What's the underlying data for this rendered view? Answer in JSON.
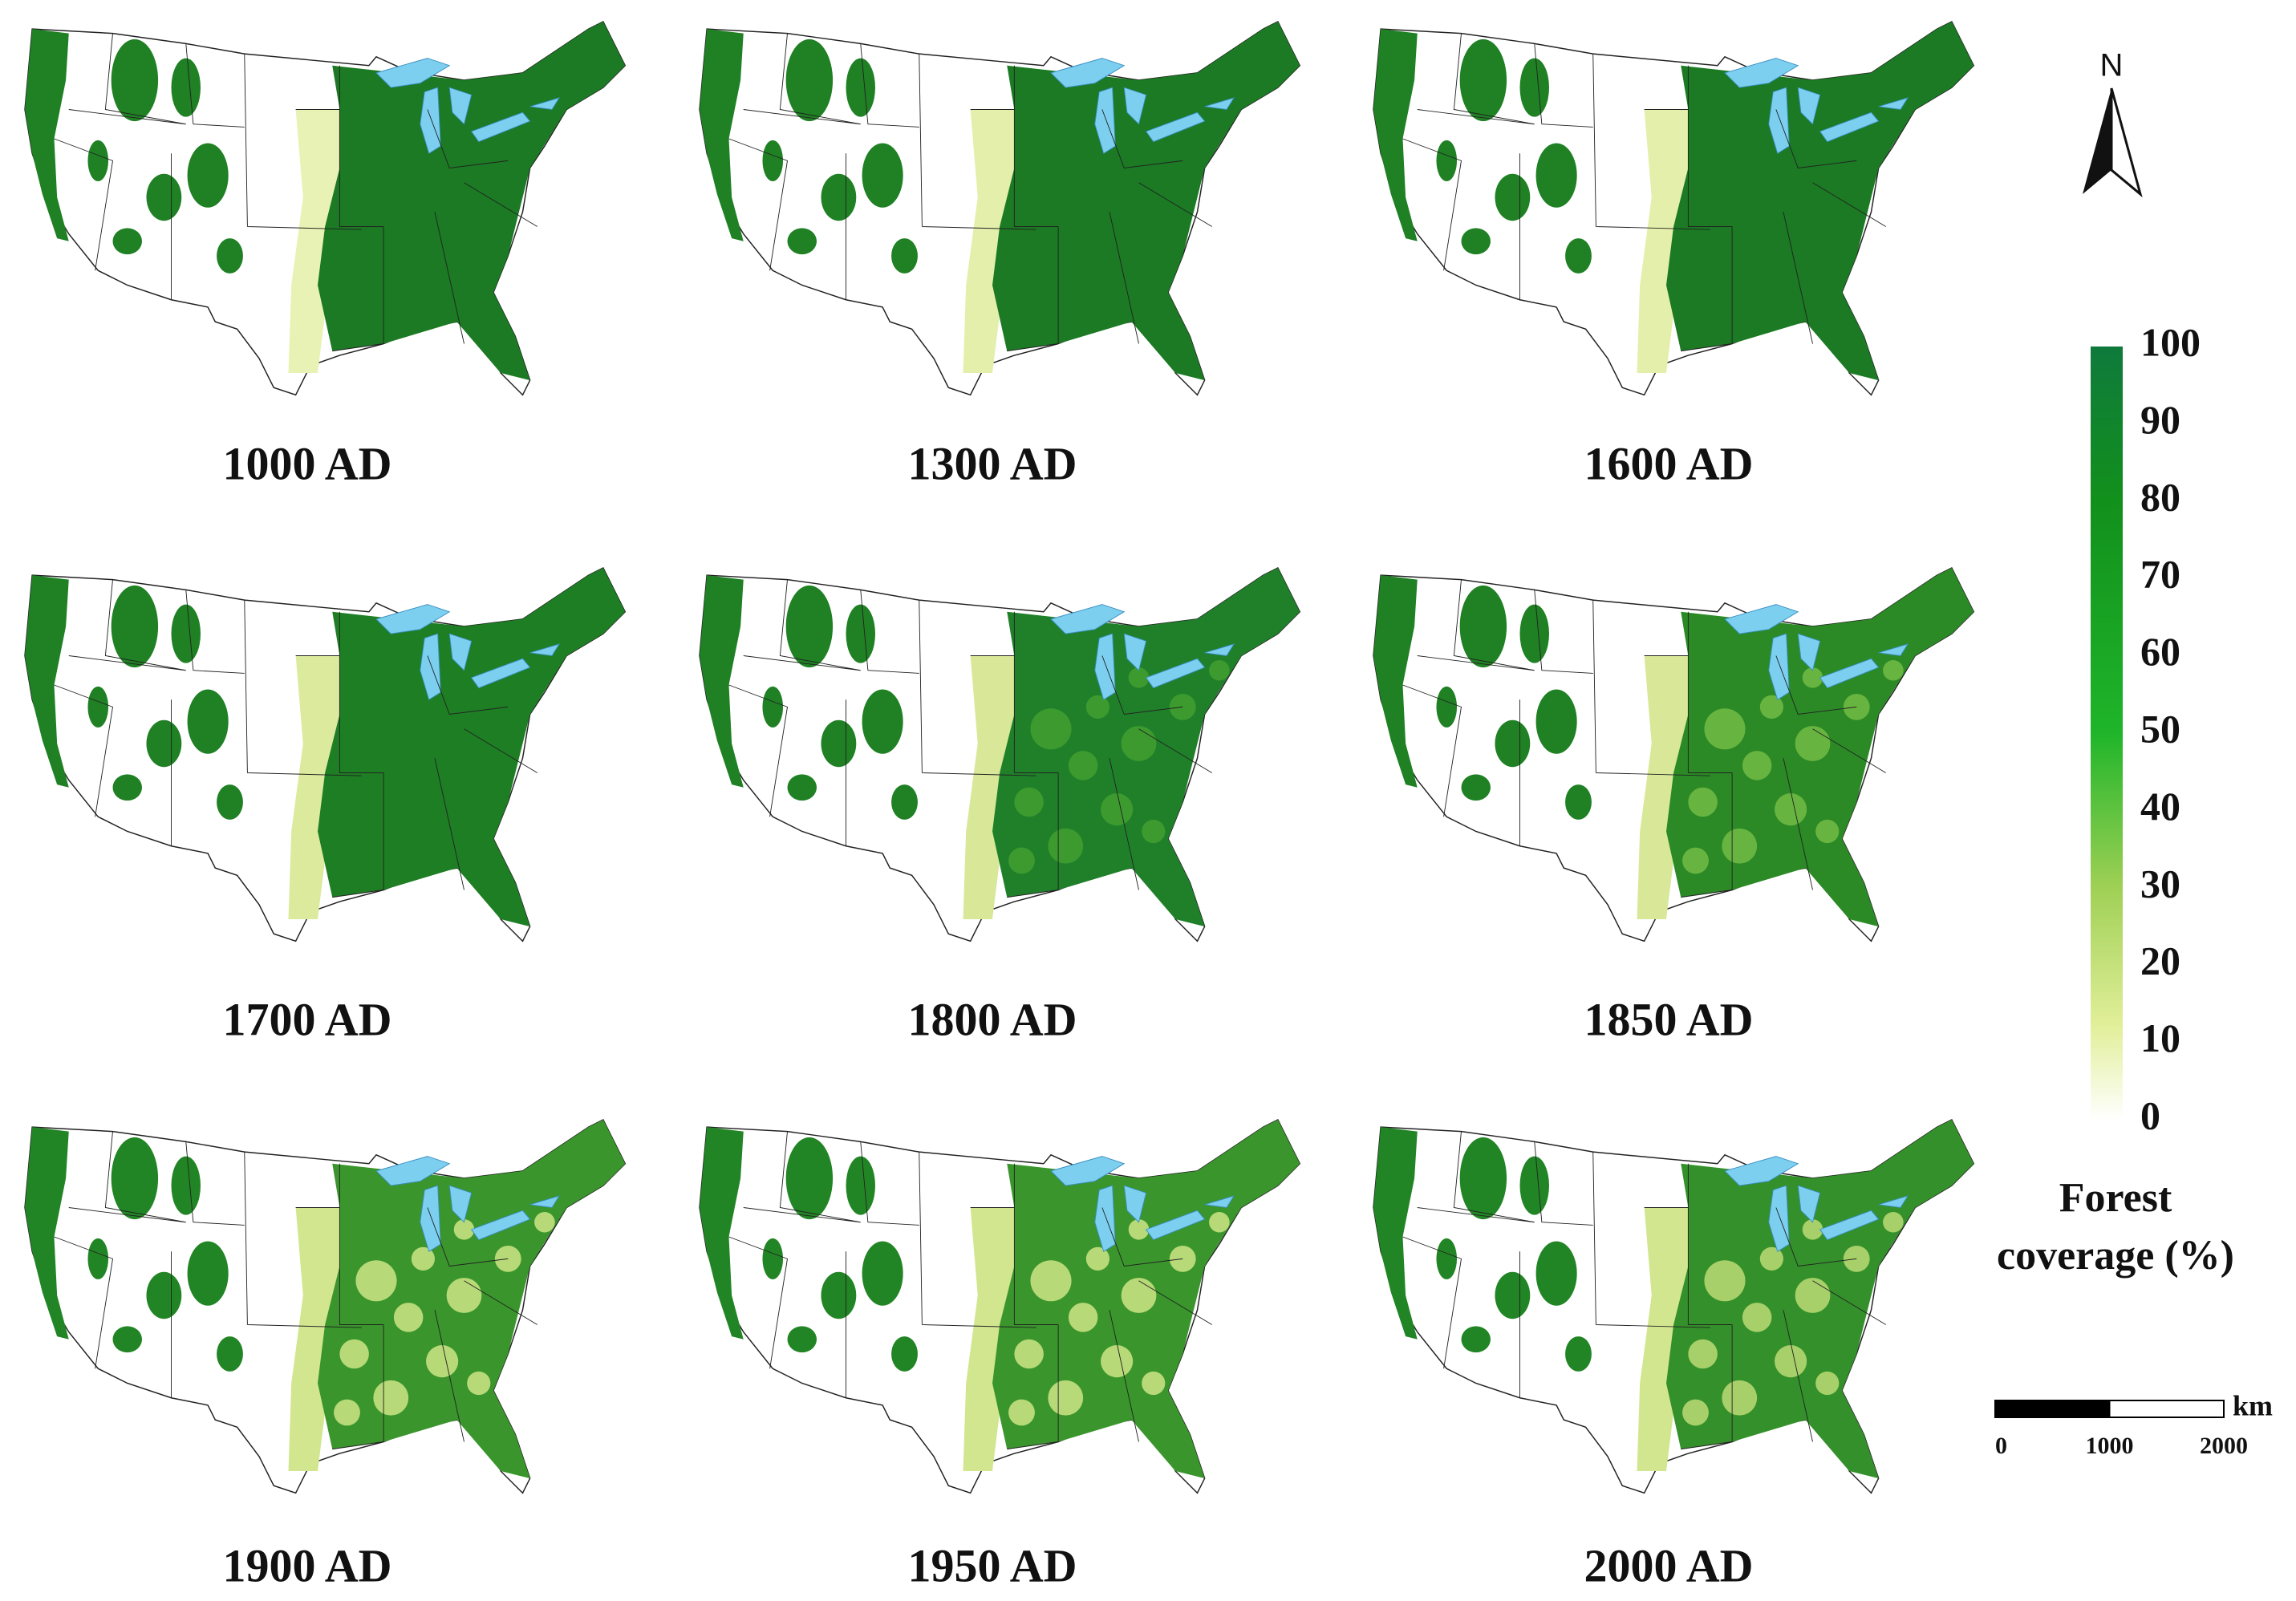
{
  "panels": [
    {
      "label": "1000 AD"
    },
    {
      "label": "1300 AD"
    },
    {
      "label": "1600 AD"
    },
    {
      "label": "1700 AD"
    },
    {
      "label": "1800 AD"
    },
    {
      "label": "1850 AD"
    },
    {
      "label": "1900 AD"
    },
    {
      "label": "1950 AD"
    },
    {
      "label": "2000 AD"
    }
  ],
  "legend": {
    "title": "Forest coverage (%)",
    "ticks": [
      0,
      10,
      20,
      30,
      40,
      50,
      60,
      70,
      80,
      90,
      100
    ]
  },
  "scale_bar": {
    "ticks": [
      0,
      1000,
      2000
    ],
    "unit": "km"
  },
  "north_arrow": {
    "label": "N"
  }
}
